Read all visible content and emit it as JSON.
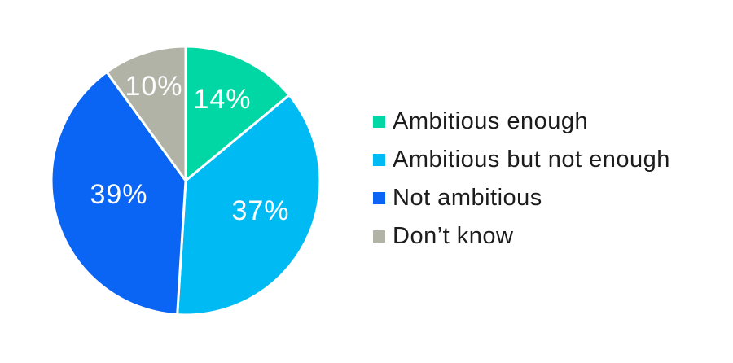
{
  "chart_data": {
    "type": "pie",
    "title": "",
    "categories": [
      "Ambitious enough",
      "Ambitious but not enough",
      "Not ambitious",
      "Don’t know"
    ],
    "values": [
      14,
      37,
      39,
      10
    ],
    "labels": [
      "14%",
      "37%",
      "39%",
      "10%"
    ],
    "colors": [
      "#00d7a5",
      "#00baf4",
      "#0a64f4",
      "#b2b3a7"
    ],
    "slice_border_color": "#ffffff",
    "slice_label_color": "#fdfdfd",
    "legend_text_color": "#1c1c1c",
    "background": "#ffffff",
    "start_angle_deg": 0,
    "direction": "clockwise",
    "legend_position": "right"
  }
}
